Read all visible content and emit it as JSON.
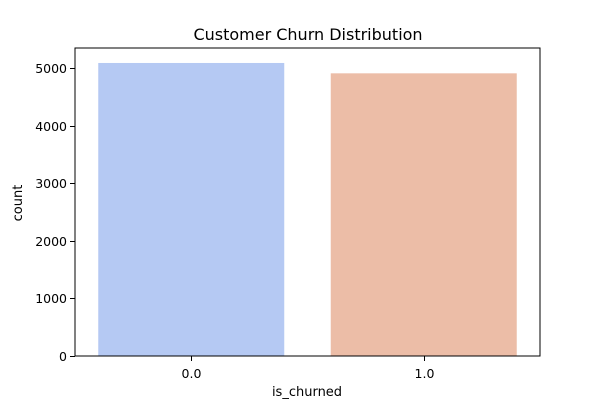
{
  "chart_data": {
    "type": "bar",
    "title": "Customer Churn Distribution",
    "xlabel": "is_churned",
    "ylabel": "count",
    "categories": [
      "0.0",
      "1.0"
    ],
    "values": [
      5090,
      4910
    ],
    "colors": [
      "#b5c9f3",
      "#ecbda7"
    ],
    "ylim": [
      0,
      5350
    ],
    "yticks": [
      0,
      1000,
      2000,
      3000,
      4000,
      5000
    ],
    "ytick_labels": [
      "0",
      "1000",
      "2000",
      "3000",
      "4000",
      "5000"
    ],
    "grid": false,
    "legend": "none"
  }
}
